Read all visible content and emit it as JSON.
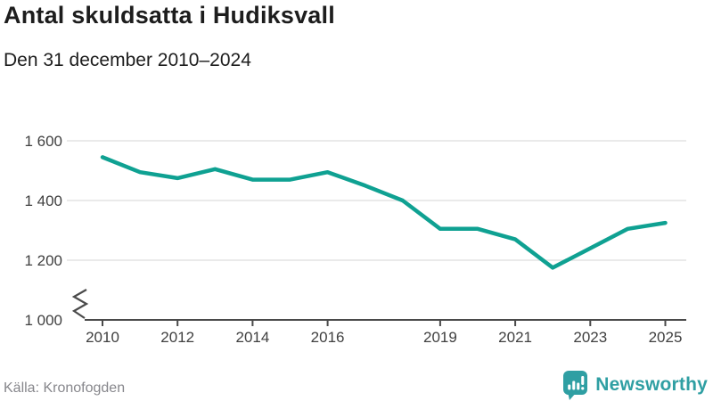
{
  "page": {
    "title": "Antal skuldsatta i Hudiksvall",
    "subtitle": "Den 31 december 2010–2024"
  },
  "footer": {
    "source": "Källa: Kronofogden",
    "brand": "Newsworthy"
  },
  "colors": {
    "line": "#0FA192",
    "brand": "#2F9FA3",
    "grid": "#E4E4E4",
    "axis": "#4A4A4A",
    "tick_text": "#404040",
    "title_text": "#1D1D1D",
    "source_text": "#87878C"
  },
  "chart_data": {
    "type": "line",
    "title": "Antal skuldsatta i Hudiksvall",
    "subtitle": "Den 31 december 2010–2024",
    "x": [
      2010,
      2011,
      2012,
      2013,
      2014,
      2015,
      2016,
      2017,
      2018,
      2019,
      2020,
      2021,
      2022,
      2023,
      2024,
      2025
    ],
    "values": [
      1545,
      1495,
      1475,
      1505,
      1470,
      1470,
      1495,
      1450,
      1400,
      1305,
      1305,
      1270,
      1175,
      1240,
      1305,
      1325
    ],
    "series_name": "Antal skuldsatta",
    "line_color": "#0FA192",
    "y_ticks": [
      {
        "value": 1600,
        "label": "1 600"
      },
      {
        "value": 1400,
        "label": "1 400"
      },
      {
        "value": 1200,
        "label": "1 200"
      },
      {
        "value": 1000,
        "label": "1 000"
      }
    ],
    "x_ticks": [
      {
        "value": 2010,
        "label": "2010"
      },
      {
        "value": 2012,
        "label": "2012"
      },
      {
        "value": 2014,
        "label": "2014"
      },
      {
        "value": 2016,
        "label": "2016"
      },
      {
        "value": 2019,
        "label": "2019"
      },
      {
        "value": 2021,
        "label": "2021"
      },
      {
        "value": 2023,
        "label": "2023"
      },
      {
        "value": 2025,
        "label": "2025"
      }
    ],
    "ylim": [
      1000,
      1600
    ],
    "axis_break": true,
    "grid": "horizontal",
    "legend": "none"
  }
}
